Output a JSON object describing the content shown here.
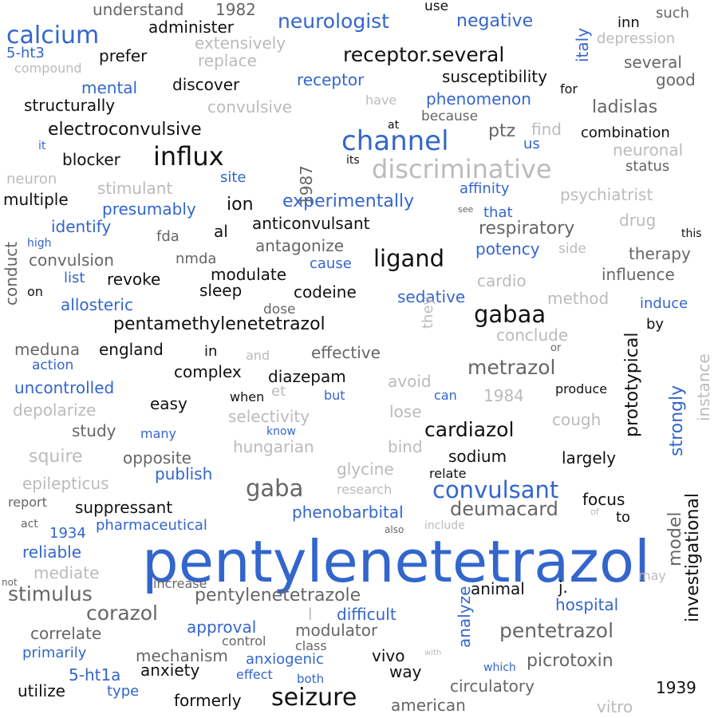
{
  "palette": {
    "black": "#111111",
    "blue": "#3366cc",
    "darkgray": "#666666",
    "gray": "#999999",
    "lightgray": "#bbbbbb"
  },
  "words": [
    "pentylenetetrazol",
    "seizure",
    "calcium",
    "channel",
    "influx",
    "discriminative",
    "ligand",
    "gaba",
    "convulsant",
    "gabaa",
    "neurologist",
    "negative",
    "receptor.several",
    "cardiazol",
    "stimulus",
    "metrazol",
    "pentetrazol",
    "corazol",
    "picrotoxin",
    "deumacard",
    "pentamethylenetetrazol",
    "pentylenetetrazole",
    "electroconvulsive",
    "anticonvulsant",
    "experimentally",
    "respiratory",
    "susceptibility",
    "ladislas",
    "prototypical",
    "investigational",
    "model",
    "strongly",
    "italy",
    "conduct",
    "1987",
    "instance",
    "analyze",
    "understand",
    "administer",
    "prefer",
    "compound",
    "extensively",
    "replace",
    "depression",
    "several",
    "good",
    "inn",
    "such",
    "use",
    "1982",
    "5-ht3",
    "mental",
    "discover",
    "receptor",
    "structurally",
    "convulsive",
    "have",
    "for",
    "phenomenon",
    "because",
    "combination",
    "at",
    "find",
    "ptz",
    "us",
    "neuronal",
    "it",
    "blocker",
    "its",
    "status",
    "neuron",
    "stimulant",
    "site",
    "affinity",
    "psychiatrist",
    "multiple",
    "ion",
    "presumably",
    "see",
    "that",
    "drug",
    "identify",
    "al",
    "fda",
    "this",
    "high",
    "convulsion",
    "nmda",
    "antagonize",
    "cause",
    "potency",
    "side",
    "therapy",
    "list",
    "revoke",
    "modulate",
    "cardio",
    "influence",
    "on",
    "sleep",
    "codeine",
    "sedative",
    "method",
    "allosteric",
    "dose",
    "induce",
    "by",
    "effective",
    "conclude",
    "meduna",
    "england",
    "in",
    "and",
    "or",
    "action",
    "complex",
    "diazepam",
    "they",
    "uncontrolled",
    "et",
    "avoid",
    "produce",
    "depolarize",
    "easy",
    "when",
    "but",
    "can",
    "1984",
    "selectivity",
    "lose",
    "cough",
    "study",
    "many",
    "know",
    "hungarian",
    "bind",
    "squire",
    "opposite",
    "sodium",
    "largely",
    "epilepticus",
    "publish",
    "glycine",
    "relate",
    "research",
    "report",
    "suppressant",
    "phenobarbital",
    "focus",
    "act",
    "1934",
    "pharmaceutical",
    "include",
    "of",
    "to",
    "reliable",
    "also",
    "mediate",
    "not",
    "increase",
    "may",
    "correlate",
    "approval",
    "l",
    "difficult",
    "hospital",
    "animal",
    "j.",
    "modulator",
    "control",
    "class",
    "primarily",
    "mechanism",
    "anxiogenic",
    "with",
    "vivo",
    "which",
    "way",
    "5-ht1a",
    "effect",
    "both",
    "anxiety",
    "utilize",
    "type",
    "circulatory",
    "1939",
    "formerly",
    "american",
    "vitro"
  ]
}
